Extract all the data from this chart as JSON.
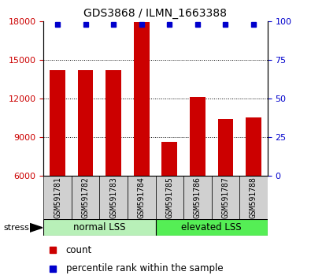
{
  "title": "GDS3868 / ILMN_1663388",
  "samples": [
    "GSM591781",
    "GSM591782",
    "GSM591783",
    "GSM591784",
    "GSM591785",
    "GSM591786",
    "GSM591787",
    "GSM591788"
  ],
  "counts": [
    14200,
    14200,
    14200,
    17900,
    8600,
    12100,
    10400,
    10500
  ],
  "ylim_left": [
    6000,
    18000
  ],
  "ylim_right": [
    0,
    100
  ],
  "yticks_left": [
    6000,
    9000,
    12000,
    15000,
    18000
  ],
  "yticks_right": [
    0,
    25,
    50,
    75,
    100
  ],
  "bar_color": "#cc0000",
  "dot_color": "#0000cc",
  "bar_width": 0.55,
  "group_normal_color": "#b8f0b8",
  "group_elevated_color": "#55ee55",
  "stress_label": "stress",
  "legend_count_label": "count",
  "legend_pct_label": "percentile rank within the sample",
  "tick_color_left": "#cc0000",
  "tick_color_right": "#0000cc",
  "sample_bg_color": "#d0d0d0"
}
